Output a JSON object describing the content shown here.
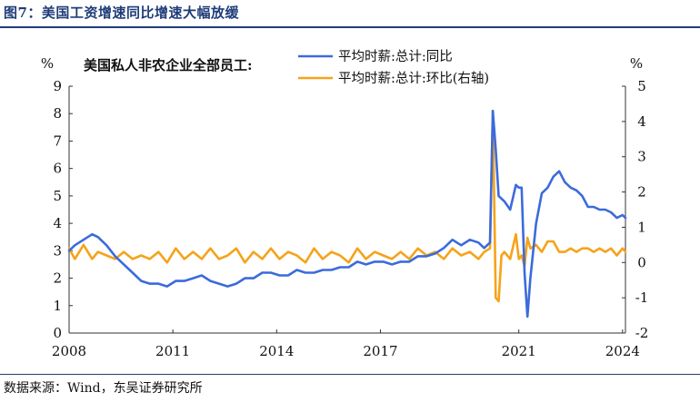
{
  "figure": {
    "title": "图7：美国工资增速同比增速大幅放缓",
    "source": "数据来源：Wind，东吴证券研究所"
  },
  "colors": {
    "series1": "#3b6bdc",
    "series2": "#f5a31a",
    "title": "#1f3c78"
  },
  "chart_data": {
    "type": "line",
    "title": "美国私人非农企业全部员工:",
    "ylabel_left": "%",
    "ylabel_right": "%",
    "ylim_left": [
      0,
      9
    ],
    "ylim_right": [
      -2,
      5
    ],
    "yticks_left": [
      "0",
      "1",
      "2",
      "3",
      "4",
      "5",
      "6",
      "7",
      "8",
      "9"
    ],
    "yticks_right": [
      "-2",
      "-1",
      "0",
      "1",
      "2",
      "3",
      "4",
      "5"
    ],
    "xlim": [
      "2008-01",
      "2024-02"
    ],
    "xticks": [
      "2008",
      "2011",
      "2014",
      "2017",
      "2021",
      "2024"
    ],
    "grid": false,
    "legend_position": "top-center",
    "series": [
      {
        "name": "平均时薪:总计:同比",
        "axis": "left",
        "x": [
          "2008-01",
          "2008-03",
          "2008-06",
          "2008-09",
          "2008-11",
          "2009-02",
          "2009-05",
          "2009-08",
          "2009-11",
          "2010-02",
          "2010-05",
          "2010-08",
          "2010-11",
          "2011-02",
          "2011-05",
          "2011-08",
          "2011-11",
          "2012-02",
          "2012-05",
          "2012-08",
          "2012-11",
          "2013-02",
          "2013-05",
          "2013-08",
          "2013-11",
          "2014-02",
          "2014-05",
          "2014-08",
          "2014-11",
          "2015-02",
          "2015-05",
          "2015-08",
          "2015-11",
          "2016-02",
          "2016-05",
          "2016-08",
          "2016-11",
          "2017-02",
          "2017-05",
          "2017-08",
          "2017-11",
          "2018-02",
          "2018-05",
          "2018-08",
          "2018-11",
          "2019-02",
          "2019-05",
          "2019-08",
          "2019-11",
          "2020-01",
          "2020-03",
          "2020-04",
          "2020-05",
          "2020-06",
          "2020-08",
          "2020-10",
          "2020-12",
          "2021-01",
          "2021-02",
          "2021-03",
          "2021-04",
          "2021-05",
          "2021-07",
          "2021-09",
          "2021-11",
          "2022-01",
          "2022-03",
          "2022-05",
          "2022-07",
          "2022-09",
          "2022-11",
          "2023-01",
          "2023-03",
          "2023-05",
          "2023-07",
          "2023-09",
          "2023-11",
          "2024-01",
          "2024-02"
        ],
        "values": [
          3.0,
          3.2,
          3.4,
          3.6,
          3.5,
          3.2,
          2.8,
          2.5,
          2.2,
          1.9,
          1.8,
          1.8,
          1.7,
          1.9,
          1.9,
          2.0,
          2.1,
          1.9,
          1.8,
          1.7,
          1.8,
          2.0,
          2.0,
          2.2,
          2.2,
          2.1,
          2.1,
          2.3,
          2.2,
          2.2,
          2.3,
          2.3,
          2.4,
          2.4,
          2.6,
          2.5,
          2.6,
          2.6,
          2.5,
          2.6,
          2.6,
          2.8,
          2.8,
          2.9,
          3.1,
          3.4,
          3.2,
          3.4,
          3.3,
          3.1,
          3.3,
          8.1,
          6.7,
          5.0,
          4.8,
          4.5,
          5.4,
          5.3,
          5.3,
          2.2,
          0.6,
          2.0,
          4.0,
          5.1,
          5.3,
          5.7,
          5.9,
          5.5,
          5.3,
          5.2,
          5.0,
          4.6,
          4.6,
          4.5,
          4.5,
          4.4,
          4.2,
          4.3,
          4.2
        ]
      },
      {
        "name": "平均时薪:总计:环比(右轴)",
        "axis": "right",
        "x": [
          "2008-01",
          "2008-03",
          "2008-06",
          "2008-09",
          "2008-11",
          "2009-02",
          "2009-05",
          "2009-08",
          "2009-11",
          "2010-02",
          "2010-05",
          "2010-08",
          "2010-11",
          "2011-02",
          "2011-05",
          "2011-08",
          "2011-11",
          "2012-02",
          "2012-05",
          "2012-08",
          "2012-11",
          "2013-02",
          "2013-05",
          "2013-08",
          "2013-11",
          "2014-02",
          "2014-05",
          "2014-08",
          "2014-11",
          "2015-02",
          "2015-05",
          "2015-08",
          "2015-11",
          "2016-02",
          "2016-05",
          "2016-08",
          "2016-11",
          "2017-02",
          "2017-05",
          "2017-08",
          "2017-11",
          "2018-02",
          "2018-05",
          "2018-08",
          "2018-11",
          "2019-02",
          "2019-05",
          "2019-08",
          "2019-11",
          "2020-01",
          "2020-03",
          "2020-04",
          "2020-05",
          "2020-06",
          "2020-07",
          "2020-08",
          "2020-10",
          "2020-12",
          "2021-01",
          "2021-02",
          "2021-03",
          "2021-04",
          "2021-05",
          "2021-07",
          "2021-09",
          "2021-11",
          "2022-01",
          "2022-03",
          "2022-05",
          "2022-07",
          "2022-09",
          "2022-11",
          "2023-01",
          "2023-03",
          "2023-05",
          "2023-07",
          "2023-09",
          "2023-11",
          "2024-01",
          "2024-02"
        ],
        "values": [
          0.4,
          0.1,
          0.5,
          0.1,
          0.3,
          0.2,
          0.1,
          0.3,
          0.1,
          0.2,
          0.1,
          0.3,
          0.0,
          0.4,
          0.1,
          0.3,
          0.1,
          0.4,
          0.1,
          0.2,
          0.4,
          0.0,
          0.3,
          0.1,
          0.4,
          0.1,
          0.3,
          0.2,
          0.0,
          0.4,
          0.1,
          0.3,
          0.2,
          0.0,
          0.4,
          0.1,
          0.3,
          0.2,
          0.1,
          0.3,
          0.1,
          0.4,
          0.2,
          0.3,
          0.1,
          0.4,
          0.2,
          0.3,
          0.1,
          0.3,
          0.4,
          4.3,
          -1.0,
          -1.1,
          0.2,
          0.3,
          0.1,
          0.8,
          0.1,
          0.2,
          -0.1,
          0.7,
          0.4,
          0.5,
          0.3,
          0.6,
          0.6,
          0.3,
          0.3,
          0.4,
          0.3,
          0.4,
          0.4,
          0.3,
          0.4,
          0.3,
          0.4,
          0.2,
          0.4,
          0.3
        ]
      }
    ]
  }
}
